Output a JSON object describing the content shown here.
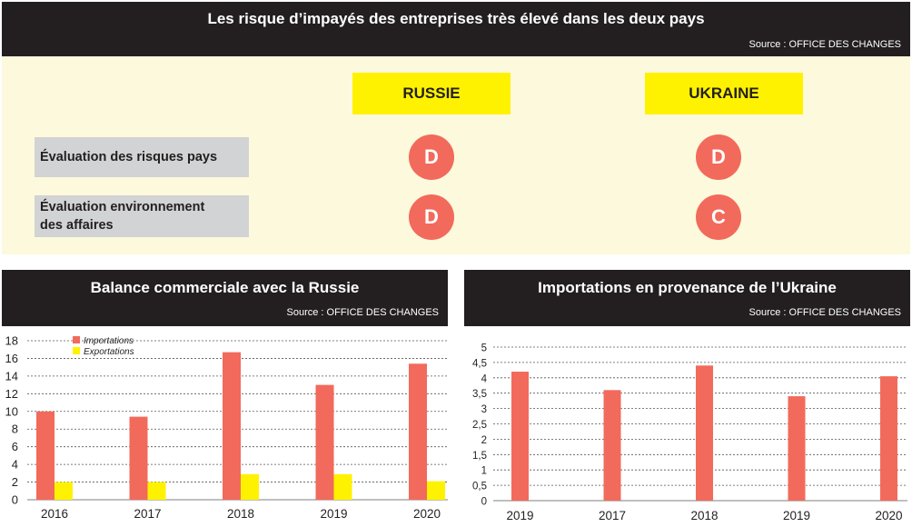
{
  "header": {
    "title": "Les risque d’impayés des entreprises très élevé dans les deux pays",
    "source": "Source : OFFICE DES CHANGES"
  },
  "risk_table": {
    "countries": [
      "RUSSIE",
      "UKRAINE"
    ],
    "rows": [
      {
        "label": "Évaluation des risques pays",
        "grades": [
          "D",
          "D"
        ]
      },
      {
        "label_lines": [
          "Évaluation environnement",
          "des affaires"
        ],
        "grades": [
          "D",
          "C"
        ]
      }
    ]
  },
  "colors": {
    "importations": "#f26a5b",
    "exportations": "#fff200",
    "header_bg": "#231f20",
    "panel_bg": "#fdf9dc"
  },
  "chart_data": [
    {
      "type": "bar",
      "title": "Balance commerciale avec la Russie",
      "source": "Source : OFFICE DES CHANGES",
      "categories": [
        "2016",
        "2017",
        "2018",
        "2019",
        "2020"
      ],
      "series": [
        {
          "name": "Importations",
          "values": [
            10,
            9.4,
            16.7,
            13,
            15.4
          ]
        },
        {
          "name": "Exportations",
          "values": [
            2,
            2,
            2.9,
            2.9,
            2.1
          ]
        }
      ],
      "yticks": [
        "0",
        "2",
        "4",
        "6",
        "8",
        "10",
        "12",
        "14",
        "16",
        "18"
      ],
      "ylim": [
        0,
        18
      ],
      "grid": true,
      "legend": "top-left"
    },
    {
      "type": "bar",
      "title": "Importations en provenance de l’Ukraine",
      "source": "Source : OFFICE DES CHANGES",
      "categories": [
        "2019",
        "2017",
        "2018",
        "2019",
        "2020"
      ],
      "series": [
        {
          "name": "Importations",
          "values": [
            4.2,
            3.6,
            4.4,
            3.4,
            4.05
          ]
        }
      ],
      "yticks": [
        "0",
        "0,5",
        "1",
        "1,5",
        "2",
        "2,5",
        "3",
        "3,5",
        "4",
        "4,5",
        "5"
      ],
      "ylim": [
        0,
        5
      ],
      "grid": true
    }
  ]
}
